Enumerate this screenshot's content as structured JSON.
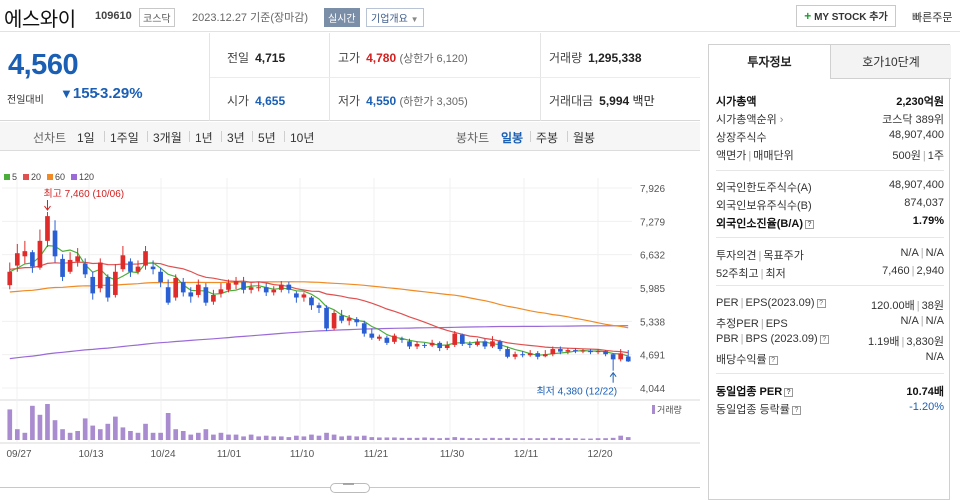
{
  "header": {
    "name": "에스와이",
    "code": "109610",
    "market": "코스닥",
    "date": "2023.12.27 기준(장마감)",
    "realtime": "실시간",
    "overview": "기업개요",
    "mystock": "MY STOCK 추가",
    "quick_order": "빠른주문"
  },
  "quote": {
    "price": "4,560",
    "change_label": "전일대비",
    "change": "155",
    "change_rate": "-3.29%",
    "prev_label": "전일",
    "prev": "4,715",
    "high_label": "고가",
    "high": "4,780",
    "upper_limit": "(상한가 6,120)",
    "volume_label": "거래량",
    "volume": "1,295,338",
    "open_label": "시가",
    "open": "4,655",
    "low_label": "저가",
    "low": "4,550",
    "lower_limit": "(하한가 3,305)",
    "amount_label": "거래대금",
    "amount": "5,994",
    "amount_unit": "백만"
  },
  "chart_tabs": {
    "line_head": "선차트",
    "line_items": [
      "1일",
      "1주일",
      "3개월",
      "1년",
      "3년",
      "5년",
      "10년"
    ],
    "candle_head": "봉차트",
    "candle_items": [
      "일봉",
      "주봉",
      "월봉"
    ],
    "active_candle": 0
  },
  "colors": {
    "up": "#e02b2b",
    "down": "#2a5fd4",
    "ma5": "#4cae3a",
    "ma20": "#e05050",
    "ma60": "#f08a24",
    "ma120": "#9a6ad8",
    "volume": "#a98bd0"
  },
  "chart_data": {
    "type": "candlestick",
    "legend": [
      {
        "name": "5",
        "color": "#4cae3a"
      },
      {
        "name": "20",
        "color": "#e05050"
      },
      {
        "name": "60",
        "color": "#f08a24"
      },
      {
        "name": "120",
        "color": "#9a6ad8"
      }
    ],
    "y_ticks": [
      "7,926",
      "7,279",
      "6,632",
      "5,985",
      "5,338",
      "4,691",
      "4,044"
    ],
    "ylim": [
      4044,
      7926
    ],
    "x_labels": [
      "09/27",
      "10/13",
      "10/24",
      "11/01",
      "11/10",
      "11/21",
      "11/30",
      "12/11",
      "12/20"
    ],
    "high_annotation": "최고 7,460 (10/06)",
    "low_annotation": "최저 4,380 (12/22)",
    "volume_label": "거래량",
    "candles": [
      [
        6040,
        6300,
        6480,
        5960
      ],
      [
        6420,
        6660,
        6840,
        6300
      ],
      [
        6600,
        6700,
        6900,
        6460
      ],
      [
        6680,
        6400,
        6720,
        6280
      ],
      [
        6380,
        6900,
        7120,
        6340
      ],
      [
        6900,
        7380,
        7460,
        6780
      ],
      [
        7100,
        6600,
        7300,
        6480
      ],
      [
        6550,
        6200,
        6640,
        6120
      ],
      [
        6300,
        6530,
        6680,
        6260
      ],
      [
        6500,
        6600,
        6760,
        6400
      ],
      [
        6460,
        6250,
        6560,
        6180
      ],
      [
        6200,
        5880,
        6300,
        5760
      ],
      [
        5980,
        6480,
        6560,
        5900
      ],
      [
        6200,
        5800,
        6250,
        5720
      ],
      [
        5850,
        6300,
        6450,
        5800
      ],
      [
        6350,
        6620,
        6800,
        6300
      ],
      [
        6500,
        6300,
        6560,
        6200
      ],
      [
        6300,
        6400,
        6520,
        6250
      ],
      [
        6420,
        6700,
        6800,
        6340
      ],
      [
        6400,
        6350,
        6520,
        6250
      ],
      [
        6300,
        6100,
        6380,
        6000
      ],
      [
        6000,
        5700,
        6150,
        5660
      ],
      [
        5800,
        6180,
        6250,
        5740
      ],
      [
        6100,
        5900,
        6180,
        5820
      ],
      [
        5900,
        5820,
        6000,
        5700
      ],
      [
        5850,
        6050,
        6150,
        5800
      ],
      [
        6000,
        5700,
        6080,
        5640
      ],
      [
        5720,
        5850,
        5950,
        5660
      ],
      [
        5880,
        5960,
        6080,
        5800
      ],
      [
        5950,
        6080,
        6150,
        5900
      ],
      [
        6050,
        6120,
        6200,
        5960
      ],
      [
        6100,
        5950,
        6200,
        5880
      ],
      [
        5950,
        6000,
        6080,
        5880
      ],
      [
        6000,
        6000,
        6100,
        5920
      ],
      [
        6000,
        5900,
        6080,
        5830
      ],
      [
        5900,
        5950,
        6020,
        5840
      ],
      [
        5950,
        6050,
        6120,
        5900
      ],
      [
        6050,
        5950,
        6100,
        5880
      ],
      [
        5880,
        5800,
        5920,
        5700
      ],
      [
        5800,
        5860,
        5900,
        5720
      ],
      [
        5800,
        5650,
        5830,
        5560
      ],
      [
        5650,
        5600,
        5700,
        5500
      ],
      [
        5600,
        5200,
        5650,
        5150
      ],
      [
        5200,
        5500,
        5550,
        5160
      ],
      [
        5450,
        5350,
        5560,
        5300
      ],
      [
        5350,
        5400,
        5460,
        5260
      ],
      [
        5380,
        5320,
        5420,
        5240
      ],
      [
        5300,
        5100,
        5350,
        5040
      ],
      [
        5100,
        5020,
        5200,
        4980
      ],
      [
        5000,
        5040,
        5080,
        4960
      ],
      [
        5020,
        4920,
        5060,
        4880
      ],
      [
        4940,
        5060,
        5100,
        4900
      ],
      [
        5000,
        4980,
        5040,
        4920
      ],
      [
        4950,
        4850,
        5000,
        4800
      ],
      [
        4850,
        4900,
        4950,
        4800
      ],
      [
        4880,
        4870,
        4920,
        4820
      ],
      [
        4870,
        4920,
        4980,
        4840
      ],
      [
        4920,
        4820,
        4950,
        4760
      ],
      [
        4820,
        4880,
        4950,
        4780
      ],
      [
        4880,
        5100,
        5150,
        4840
      ],
      [
        5080,
        4900,
        5100,
        4860
      ],
      [
        4900,
        4880,
        4950,
        4820
      ],
      [
        4880,
        4940,
        5000,
        4850
      ],
      [
        4950,
        4850,
        5000,
        4800
      ],
      [
        4850,
        4950,
        5050,
        4820
      ],
      [
        4950,
        4800,
        4980,
        4760
      ],
      [
        4800,
        4650,
        4850,
        4620
      ],
      [
        4650,
        4700,
        4750,
        4600
      ],
      [
        4700,
        4680,
        4760,
        4640
      ],
      [
        4680,
        4720,
        4780,
        4650
      ],
      [
        4720,
        4650,
        4760,
        4600
      ],
      [
        4660,
        4700,
        4780,
        4640
      ],
      [
        4700,
        4800,
        4850,
        4660
      ],
      [
        4800,
        4750,
        4850,
        4700
      ],
      [
        4750,
        4780,
        4820,
        4700
      ],
      [
        4780,
        4760,
        4820,
        4720
      ],
      [
        4760,
        4770,
        4800,
        4720
      ],
      [
        4770,
        4740,
        4800,
        4700
      ],
      [
        4740,
        4760,
        4800,
        4700
      ],
      [
        4760,
        4700,
        4780,
        4660
      ],
      [
        4700,
        4600,
        4720,
        4380
      ],
      [
        4600,
        4715,
        4800,
        4560
      ],
      [
        4655,
        4560,
        4780,
        4550
      ]
    ],
    "volumes": [
      0.85,
      0.3,
      0.2,
      0.95,
      0.7,
      1.0,
      0.55,
      0.3,
      0.2,
      0.25,
      0.6,
      0.4,
      0.3,
      0.45,
      0.65,
      0.35,
      0.25,
      0.2,
      0.45,
      0.2,
      0.2,
      0.75,
      0.3,
      0.25,
      0.15,
      0.2,
      0.3,
      0.15,
      0.2,
      0.15,
      0.15,
      0.1,
      0.15,
      0.1,
      0.12,
      0.1,
      0.1,
      0.08,
      0.12,
      0.1,
      0.15,
      0.12,
      0.2,
      0.15,
      0.1,
      0.12,
      0.1,
      0.12,
      0.08,
      0.07,
      0.07,
      0.07,
      0.06,
      0.06,
      0.06,
      0.07,
      0.06,
      0.05,
      0.06,
      0.08,
      0.06,
      0.05,
      0.05,
      0.05,
      0.06,
      0.05,
      0.06,
      0.05,
      0.05,
      0.05,
      0.05,
      0.05,
      0.06,
      0.05,
      0.05,
      0.05,
      0.04,
      0.04,
      0.05,
      0.05,
      0.06,
      0.12,
      0.08
    ]
  },
  "side": {
    "tab1": "투자정보",
    "tab2": "호가10단계",
    "rows": [
      {
        "k": "시가총액",
        "v": "2,230억원",
        "bold": true
      },
      {
        "k": "시가총액순위",
        "v": "코스닥 389위"
      },
      {
        "k": "상장주식수",
        "v": "48,907,400"
      },
      {
        "k": "액면가",
        "k2": "매매단위",
        "v": "500원",
        "v2": "1주"
      },
      {
        "k": "외국인한도주식수(A)",
        "v": "48,907,400"
      },
      {
        "k": "외국인보유주식수(B)",
        "v": "874,037"
      },
      {
        "k": "외국인소진율(B/A)",
        "v": "1.79%",
        "bold": true
      },
      {
        "k": "투자의견",
        "k2": "목표주가",
        "v": "N/A",
        "v2": "N/A"
      },
      {
        "k": "52주최고",
        "k2": "최저",
        "v": "7,460",
        "v2": "2,940"
      },
      {
        "k": "PER",
        "k2": "EPS(2023.09)",
        "v": "120.00배",
        "v2": "38원"
      },
      {
        "k": "추정PER",
        "k2": "EPS",
        "v": "N/A",
        "v2": "N/A"
      },
      {
        "k": "PBR",
        "k2": "BPS (2023.09)",
        "v": "1.19배",
        "v2": "3,830원"
      },
      {
        "k": "배당수익률",
        "v": "N/A"
      },
      {
        "k": "동일업종 PER",
        "v": "10.74배",
        "bold": true
      },
      {
        "k": "동일업종 등락률",
        "v": "-1.20%"
      }
    ]
  }
}
